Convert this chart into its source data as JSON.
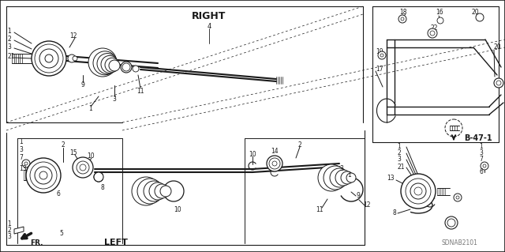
{
  "bg_color": "#ffffff",
  "fg_color": "#1a1a1a",
  "gray_color": "#777777",
  "label_RIGHT": "RIGHT",
  "label_LEFT": "LEFT",
  "label_FR": "FR.",
  "label_B47": "B-47-1",
  "label_SDNA": "SDNAB2101",
  "label_4": "4"
}
